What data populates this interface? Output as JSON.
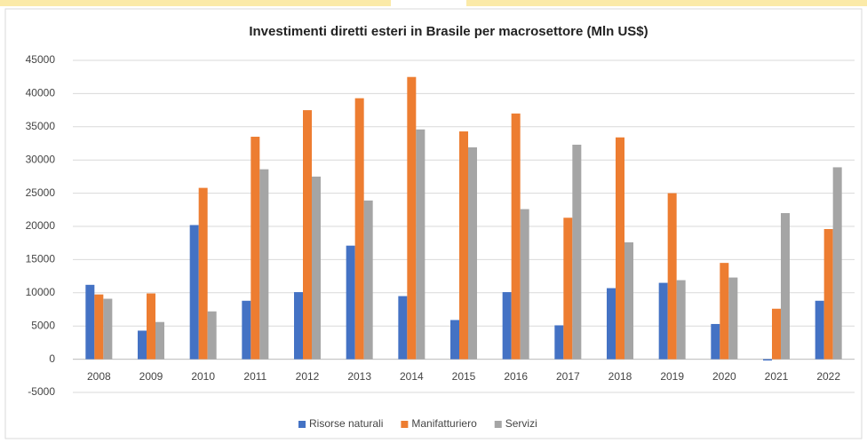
{
  "chart_data": {
    "type": "bar",
    "title": "Investimenti diretti esteri in Brasile per macrosettore (Mln US$)",
    "categories": [
      "2008",
      "2009",
      "2010",
      "2011",
      "2012",
      "2013",
      "2014",
      "2015",
      "2016",
      "2017",
      "2018",
      "2019",
      "2020",
      "2021",
      "2022"
    ],
    "series": [
      {
        "name": "Risorse naturali",
        "color": "#4472c4",
        "values": [
          11200,
          4300,
          20200,
          8800,
          10100,
          17100,
          9500,
          5900,
          10100,
          5100,
          10700,
          11500,
          5300,
          -200,
          8800
        ]
      },
      {
        "name": "Manifatturiero",
        "color": "#ed7d31",
        "values": [
          9750,
          9900,
          25800,
          33500,
          37500,
          39300,
          42500,
          34300,
          37000,
          21300,
          33400,
          25000,
          14500,
          7600,
          19600
        ]
      },
      {
        "name": "Servizi",
        "color": "#a5a5a5",
        "values": [
          9100,
          5600,
          7200,
          28600,
          27500,
          23900,
          34600,
          31900,
          22600,
          32300,
          17600,
          11900,
          12300,
          22000,
          28900
        ]
      }
    ],
    "ylim": [
      -5000,
      45000
    ],
    "yticks": [
      -5000,
      0,
      5000,
      10000,
      15000,
      20000,
      25000,
      30000,
      35000,
      40000,
      45000
    ],
    "grid": true,
    "legend": "bottom"
  }
}
